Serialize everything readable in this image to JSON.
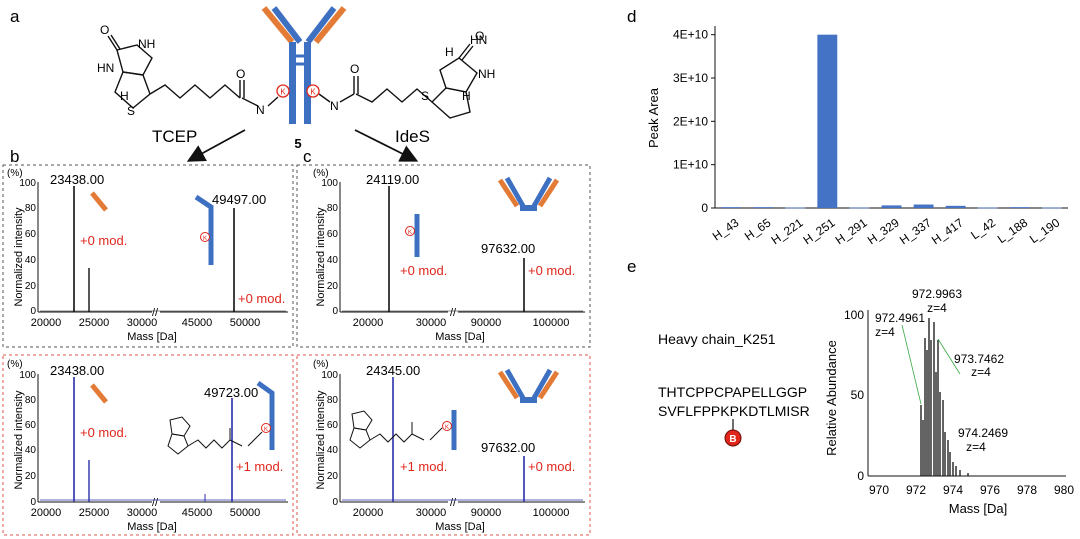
{
  "colors": {
    "orange": "#e37b36",
    "blue": "#3e70c2",
    "red": "#e0261b",
    "dark": "#1a1a1a",
    "dashed_black": "#555555",
    "dashed_red": "#e2554c",
    "spectrum_blue": "#2a2fa8",
    "barfill": "#4472c4"
  },
  "panel_labels": {
    "a": "a",
    "b": "b",
    "c": "c",
    "d": "d",
    "e": "e"
  },
  "panel_a": {
    "compound_number": "5",
    "arrow_left": "TCEP",
    "arrow_right": "IdeS",
    "K": "K",
    "NH": "NH",
    "H": "H",
    "S": "S",
    "O": "O",
    "N": "N",
    "HN": "HN"
  },
  "spectra": {
    "y_unit": "(%)",
    "y_label": "Normalized intensity",
    "x_label": "Mass [Da]",
    "b_top": {
      "peak1": "23438.00",
      "peak2": "49497.00",
      "mod1": "+0 mod.",
      "mod2": "+0 mod."
    },
    "c_top": {
      "peak1": "24119.00",
      "peak2": "97632.00",
      "mod1": "+0 mod.",
      "mod2": "+0 mod."
    },
    "b_bot": {
      "peak1": "23438.00",
      "peak2": "49723.00",
      "mod1": "+0 mod.",
      "mod2": "+1 mod."
    },
    "c_bot": {
      "peak1": "24345.00",
      "peak2": "97632.00",
      "mod1": "+1 mod.",
      "mod2": "+0 mod."
    },
    "b_ticks": [
      "20000",
      "25000",
      "30000",
      "45000",
      "50000"
    ],
    "c_ticks": [
      "20000",
      "30000",
      "90000",
      "100000"
    ],
    "y_ticks": [
      "0",
      "20",
      "40",
      "60",
      "80",
      "100"
    ]
  },
  "chart_data": {
    "type": "bar",
    "categories": [
      "H_43",
      "H_65",
      "H_221",
      "H_251",
      "H_291",
      "H_329",
      "H_337",
      "H_417",
      "L_42",
      "L_188",
      "L_190"
    ],
    "values": [
      200000000.0,
      200000000.0,
      100000000.0,
      40000000000.0,
      100000000.0,
      600000000.0,
      800000000.0,
      500000000.0,
      100000000.0,
      200000000.0,
      100000000.0
    ],
    "ylabel": "Peak Area",
    "ylim": [
      0,
      42000000000.0
    ],
    "yticks": [
      "0",
      "1E+10",
      "2E+10",
      "3E+10",
      "4E+10"
    ],
    "grid": false
  },
  "panel_e": {
    "title": "Heavy chain_K251",
    "seq1": "THTCPPCPAPELLGGP",
    "seq2": "SVFLFPPKPKDTLMISR",
    "badge": "B",
    "ylabel": "Relative Abundance",
    "xlabel": "Mass [Da]",
    "x_ticks": [
      "970",
      "972",
      "974",
      "976",
      "978",
      "980"
    ],
    "y_ticks": [
      "0",
      "50",
      "100"
    ],
    "ann1_mass": "972.9963",
    "ann1_z": "z=4",
    "ann2_mass": "972.4961",
    "ann2_z": "z=4",
    "ann3_mass": "973.7462",
    "ann3_z": "z=4",
    "ann4_mass": "974.2469",
    "ann4_z": "z=4"
  }
}
